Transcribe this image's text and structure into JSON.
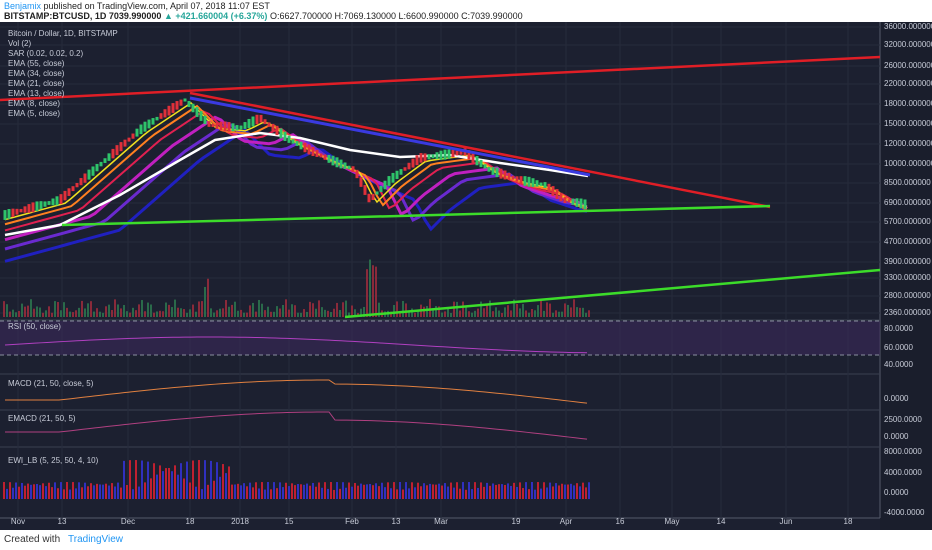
{
  "header": {
    "author": "Benjamix",
    "published": "published on TradingView.com, April 07, 2018 11:07 EST",
    "symbol": "BITSTAMP:BTCUSD, 1D",
    "last": "7039.990000",
    "change": "▲ +421.660004 (+6.37%)",
    "ohlc": "O:6627.700000 H:7069.130000 L:6600.990000 C:7039.990000"
  },
  "legend": [
    "Bitcoin / Dollar, 1D, BITSTAMP",
    "Vol (2)",
    "SAR (0.02, 0.02, 0.2)",
    "EMA (55, close)",
    "EMA (34, close)",
    "EMA (21, close)",
    "EMA (13, close)",
    "EMA (8, close)",
    "EMA (5, close)"
  ],
  "price_axis": [
    "36000.000000",
    "32000.000000",
    "26000.000000",
    "22000.000000",
    "18000.000000",
    "15000.000000",
    "12000.000000",
    "10000.000000",
    "8500.000000",
    "6900.000000",
    "5700.000000",
    "4700.000000",
    "3900.000000",
    "3300.000000",
    "2800.000000",
    "2360.000000"
  ],
  "panes": [
    {
      "title": "RSI (50, close)",
      "axis": [
        "80.0000",
        "60.0000",
        "40.0000"
      ]
    },
    {
      "title": "MACD (21, 50, close, 5)",
      "axis": [
        "0.0000"
      ]
    },
    {
      "title": "EMACD (21, 50, 5)",
      "axis": [
        "2500.0000",
        "0.0000"
      ]
    },
    {
      "title": "EWI_LB (5, 25, 50, 4, 10)",
      "axis": [
        "8000.0000",
        "4000.0000",
        "0.0000",
        "-4000.0000"
      ]
    }
  ],
  "time_axis": [
    "Nov",
    "13",
    "Dec",
    "18",
    "2018",
    "15",
    "Feb",
    "13",
    "Mar",
    "19",
    "Apr",
    "16",
    "May",
    "14",
    "Jun",
    "18"
  ],
  "footer": {
    "created": "Created with",
    "brand": "TradingView"
  }
}
